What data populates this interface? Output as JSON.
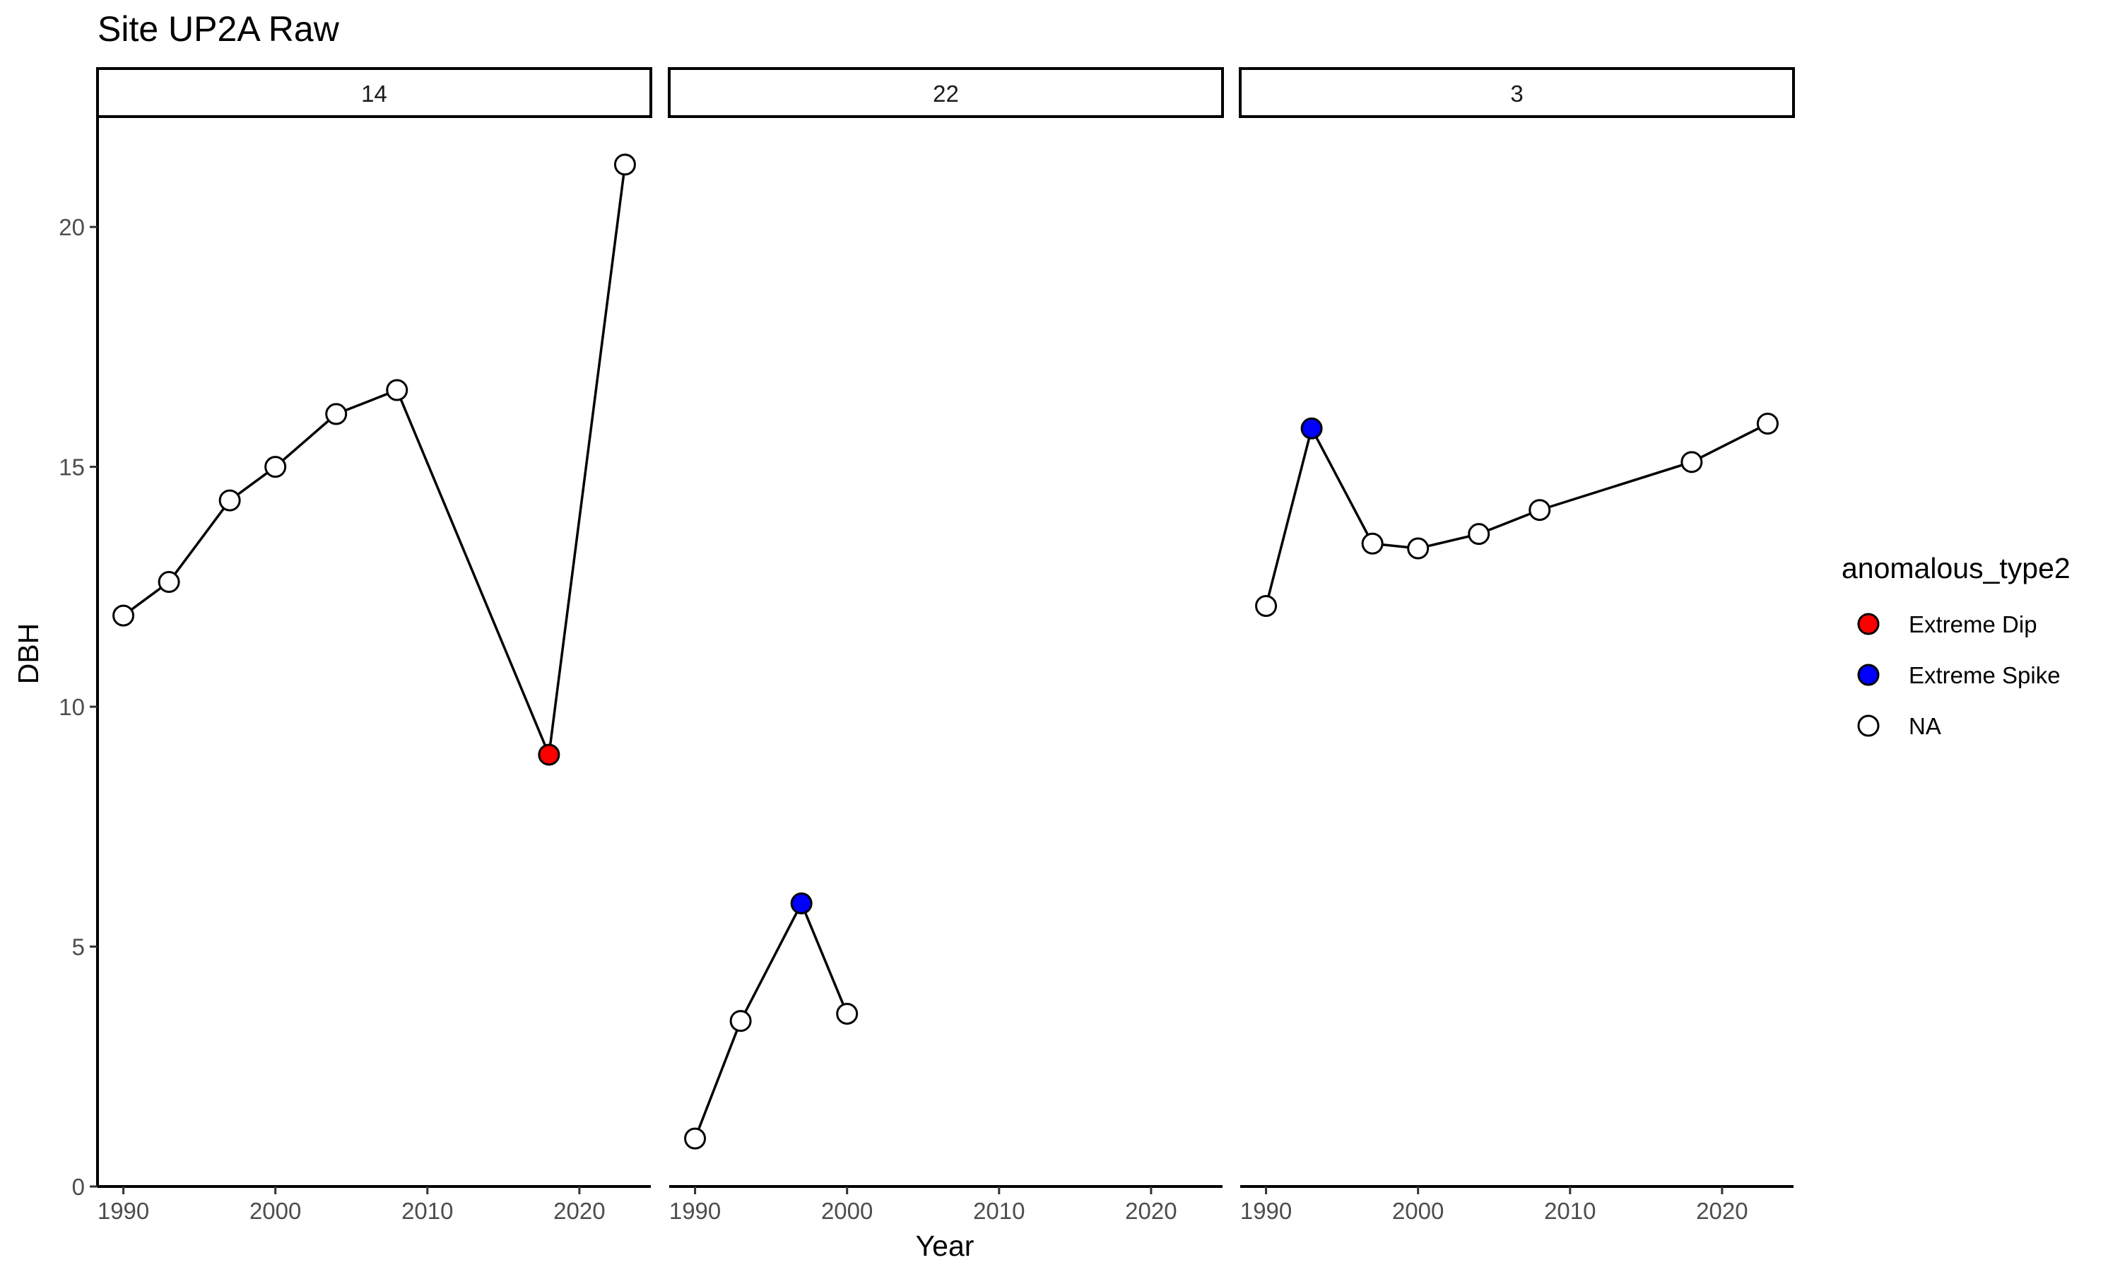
{
  "chart_data": {
    "type": "line",
    "title": "Site UP2A Raw",
    "xlabel": "Year",
    "ylabel": "DBH",
    "xlim": [
      1988.3,
      2024.7
    ],
    "ylim": [
      0,
      22.3
    ],
    "x_ticks": [
      1990,
      2000,
      2010,
      2020
    ],
    "y_ticks": [
      0,
      5,
      10,
      15,
      20
    ],
    "grid": false,
    "legend": {
      "title": "anomalous_type2",
      "placement": "right",
      "entries": [
        {
          "label": "Extreme Dip",
          "key": "dip",
          "color": "#ff0000"
        },
        {
          "label": "Extreme Spike",
          "key": "spike",
          "color": "#0000ff"
        },
        {
          "label": "NA",
          "key": "na",
          "color": "#ffffff"
        }
      ]
    },
    "panels": [
      {
        "label": "14",
        "points": [
          {
            "x": 1990,
            "y": 11.9,
            "type": "na"
          },
          {
            "x": 1993,
            "y": 12.6,
            "type": "na"
          },
          {
            "x": 1997,
            "y": 14.3,
            "type": "na"
          },
          {
            "x": 2000,
            "y": 15.0,
            "type": "na"
          },
          {
            "x": 2004,
            "y": 16.1,
            "type": "na"
          },
          {
            "x": 2008,
            "y": 16.6,
            "type": "na"
          },
          {
            "x": 2018,
            "y": 9.0,
            "type": "dip"
          },
          {
            "x": 2023,
            "y": 21.3,
            "type": "na"
          }
        ]
      },
      {
        "label": "22",
        "points": [
          {
            "x": 1990,
            "y": 1.0,
            "type": "na"
          },
          {
            "x": 1993,
            "y": 3.45,
            "type": "na"
          },
          {
            "x": 1997,
            "y": 5.9,
            "type": "spike"
          },
          {
            "x": 2000,
            "y": 3.6,
            "type": "na"
          }
        ]
      },
      {
        "label": "3",
        "points": [
          {
            "x": 1990,
            "y": 12.1,
            "type": "na"
          },
          {
            "x": 1993,
            "y": 15.8,
            "type": "spike"
          },
          {
            "x": 1997,
            "y": 13.4,
            "type": "na"
          },
          {
            "x": 2000,
            "y": 13.3,
            "type": "na"
          },
          {
            "x": 2004,
            "y": 13.6,
            "type": "na"
          },
          {
            "x": 2008,
            "y": 14.1,
            "type": "na"
          },
          {
            "x": 2018,
            "y": 15.1,
            "type": "na"
          },
          {
            "x": 2023,
            "y": 15.9,
            "type": "na"
          }
        ]
      }
    ]
  }
}
